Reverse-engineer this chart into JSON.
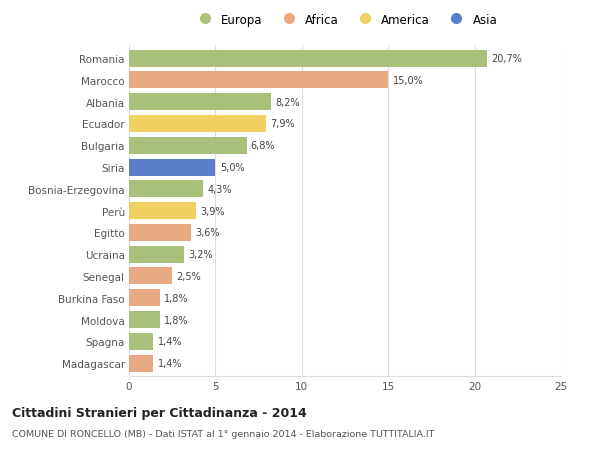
{
  "countries": [
    "Romania",
    "Marocco",
    "Albania",
    "Ecuador",
    "Bulgaria",
    "Siria",
    "Bosnia-Erzegovina",
    "Perù",
    "Egitto",
    "Ucraina",
    "Senegal",
    "Burkina Faso",
    "Moldova",
    "Spagna",
    "Madagascar"
  ],
  "values": [
    20.7,
    15.0,
    8.2,
    7.9,
    6.8,
    5.0,
    4.3,
    3.9,
    3.6,
    3.2,
    2.5,
    1.8,
    1.8,
    1.4,
    1.4
  ],
  "labels": [
    "20,7%",
    "15,0%",
    "8,2%",
    "7,9%",
    "6,8%",
    "5,0%",
    "4,3%",
    "3,9%",
    "3,6%",
    "3,2%",
    "2,5%",
    "1,8%",
    "1,8%",
    "1,4%",
    "1,4%"
  ],
  "continents": [
    "Europa",
    "Africa",
    "Europa",
    "America",
    "Europa",
    "Asia",
    "Europa",
    "America",
    "Africa",
    "Europa",
    "Africa",
    "Africa",
    "Europa",
    "Europa",
    "Africa"
  ],
  "colors": {
    "Europa": "#a8c07a",
    "Africa": "#e8a882",
    "America": "#f0d060",
    "Asia": "#5b7ec9"
  },
  "legend_order": [
    "Europa",
    "Africa",
    "America",
    "Asia"
  ],
  "title": "Cittadini Stranieri per Cittadinanza - 2014",
  "subtitle": "COMUNE DI RONCELLO (MB) - Dati ISTAT al 1° gennaio 2014 - Elaborazione TUTTITALIA.IT",
  "xlim": [
    0,
    25
  ],
  "xticks": [
    0,
    5,
    10,
    15,
    20,
    25
  ],
  "background_color": "#ffffff",
  "bar_height": 0.78,
  "grid_color": "#dddddd"
}
